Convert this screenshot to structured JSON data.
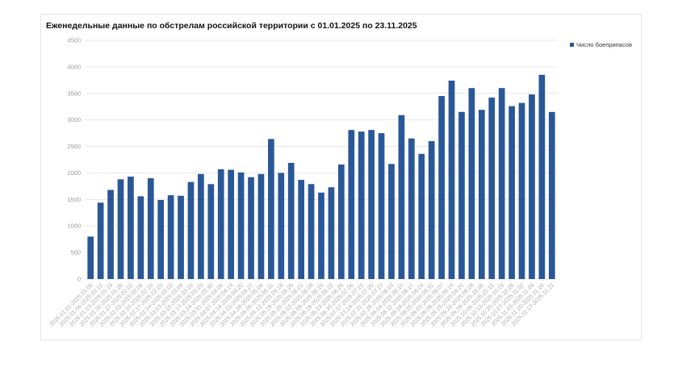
{
  "chart_data": {
    "type": "bar",
    "title": "Еженедельные данные по обстрелам российской территории с 01.01.2025 по 23.11.2025",
    "xlabel": "",
    "ylabel": "",
    "ylim": [
      0,
      4500
    ],
    "yticks": [
      0,
      500,
      1000,
      1500,
      2000,
      2500,
      3000,
      3500,
      4000,
      4500
    ],
    "grid": true,
    "legend_position": "right",
    "colors": {
      "bar": "#2a5797",
      "grid": "#e6e6e6"
    },
    "categories": [
      "2025.01.01-2025.01.05",
      "2025.01.06-2025.01.12",
      "2025.01.13-2025.01.19",
      "2025.01.20-2025.01.26",
      "2025.01.27-2025.02.02",
      "2025.02.03-2025.02.09",
      "2025.02.10-2025.02.16",
      "2025.02.17-2025.02.23",
      "2025.02.24-2025.03.02",
      "2025.03.03-2025.03.09",
      "2025.03.10-2025.03.16",
      "2025.03.17-2025.03.23",
      "2025.03.24-2025.03.30",
      "2025.03.31-2025.04.06",
      "2025.04.07-2025.04.13",
      "2025.04.14-2025.04.20",
      "2025.04.21-2025.04.27",
      "2025.04.28-2025.05.04",
      "2025.05.05-2025.05.11",
      "2025.05.12-2025.05.18",
      "2025.05.19-2025.05.25",
      "2025.05.26-2025.06.01",
      "2025.06.02-2025.06.08",
      "2025.06.09-2025.06.15",
      "2025.06.16-2025.06.22",
      "2025.06.23-2025.06.29",
      "2025.06.30-2025.07.06",
      "2025.07.07-2025.07.13",
      "2025.07.14-2025.07.20",
      "2025.07.21-2025.07.27",
      "2025.07.28-2025.08.03",
      "2025.08.04-2025.08.10",
      "2025.08.11-2025.08.17",
      "2025.08.18-2025.08.24",
      "2025.08.25-2025.08.31",
      "2025.09.01-2025.09.07",
      "2025.09.08-2025.09.14",
      "2025.09.15-2025.09.21",
      "2025.09.22-2025.09.28",
      "2025.09.29-2025.10.05",
      "2025.10.06-2025.10.12",
      "2025.10.13-2025.10.19",
      "2025.10.20-2025.10.26",
      "2025.10.27-2025.11.02",
      "2025.11.03-2025.11.09",
      "2025.11.10-2025.11.16",
      "2025.11.17-2025.11.23"
    ],
    "series": [
      {
        "name": "Число боеприпасов",
        "values": [
          800,
          1440,
          1680,
          1880,
          1930,
          1560,
          1900,
          1490,
          1580,
          1570,
          1830,
          1980,
          1790,
          2070,
          2060,
          2010,
          1920,
          1980,
          2640,
          2000,
          2190,
          1870,
          1790,
          1630,
          1730,
          2160,
          2810,
          2780,
          2810,
          2750,
          2170,
          3090,
          2650,
          2360,
          2600,
          3450,
          3740,
          3150,
          3600,
          3190,
          3420,
          3600,
          3260,
          3320,
          3480,
          3850,
          3150
        ]
      }
    ]
  }
}
